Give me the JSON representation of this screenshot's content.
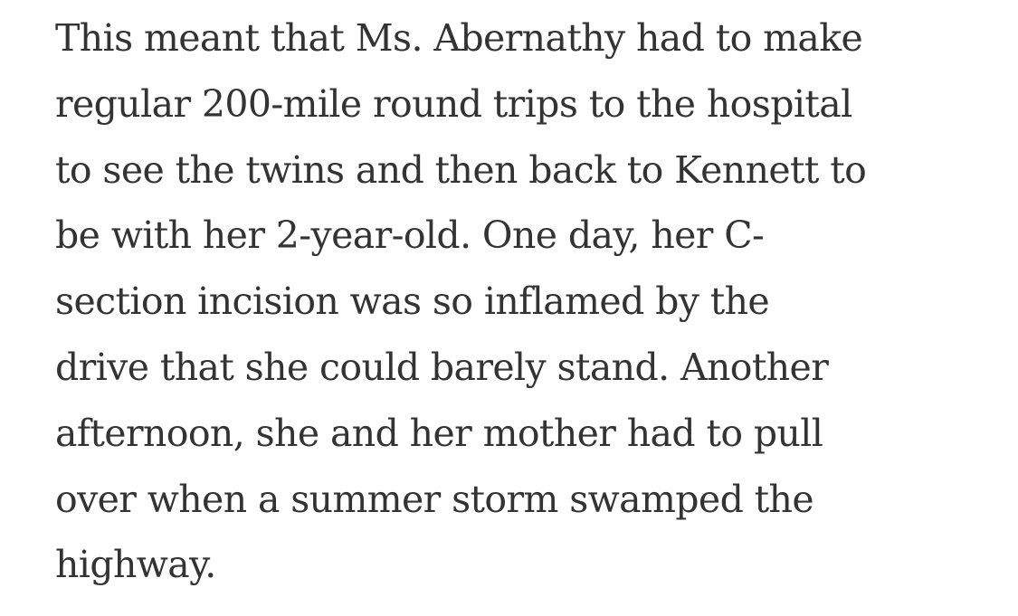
{
  "article": {
    "paragraph_lines": [
      "This meant that Ms. Abernathy had to make",
      "regular 200-mile round trips to the hospital",
      "to see the twins and then back to Kennett to",
      "be with her 2-year-old. One day, her C-",
      "section incision was so inflamed by the",
      "drive that she could barely stand. Another",
      "afternoon, she and her mother had to pull",
      "over when a summer storm swamped the",
      "highway."
    ]
  },
  "colors": {
    "text": "#333333",
    "background": "#ffffff"
  }
}
